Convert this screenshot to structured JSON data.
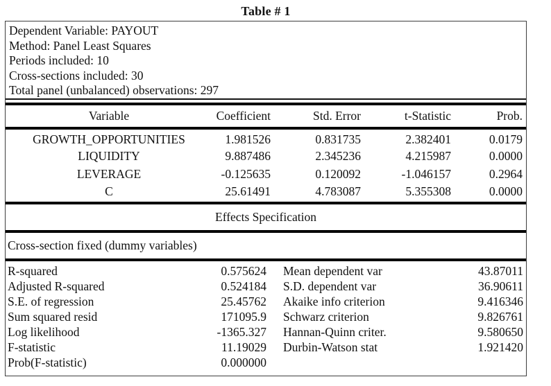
{
  "title": "Table # 1",
  "header_info": {
    "lines": [
      "Dependent Variable: PAYOUT",
      "Method: Panel Least Squares",
      "Periods included: 10",
      "Cross-sections included: 30",
      "Total panel (unbalanced) observations: 297"
    ]
  },
  "coefficients_table": {
    "columns": [
      "Variable",
      "Coefficient",
      "Std. Error",
      "t-Statistic",
      "Prob."
    ],
    "rows": [
      {
        "variable": "GROWTH_OPPORTUNITIES",
        "coefficient": "1.981526",
        "std_error": "0.831735",
        "t_statistic": "2.382401",
        "prob": "0.0179"
      },
      {
        "variable": "LIQUIDITY",
        "coefficient": "9.887486",
        "std_error": "2.345236",
        "t_statistic": "4.215987",
        "prob": "0.0000"
      },
      {
        "variable": "LEVERAGE",
        "coefficient": "-0.125635",
        "std_error": "0.120092",
        "t_statistic": "-1.046157",
        "prob": "0.2964"
      },
      {
        "variable": "C",
        "coefficient": "25.61491",
        "std_error": "4.783087",
        "t_statistic": "5.355308",
        "prob": "0.0000"
      }
    ]
  },
  "effects": {
    "section_title": "Effects Specification",
    "note": "Cross-section fixed (dummy variables)"
  },
  "summary_stats": {
    "left": [
      {
        "label": "R-squared",
        "value": "0.575624"
      },
      {
        "label": "Adjusted R-squared",
        "value": "0.524184"
      },
      {
        "label": "S.E. of regression",
        "value": "25.45762"
      },
      {
        "label": "Sum squared resid",
        "value": "171095.9"
      },
      {
        "label": "Log likelihood",
        "value": "-1365.327"
      },
      {
        "label": "F-statistic",
        "value": "11.19029"
      },
      {
        "label": "Prob(F-statistic)",
        "value": "0.000000"
      }
    ],
    "right": [
      {
        "label": "Mean dependent var",
        "value": "43.87011"
      },
      {
        "label": "S.D. dependent var",
        "value": "36.90611"
      },
      {
        "label": "Akaike info criterion",
        "value": "9.416346"
      },
      {
        "label": "Schwarz criterion",
        "value": "9.826761"
      },
      {
        "label": "Hannan-Quinn criter.",
        "value": "9.580650"
      },
      {
        "label": "Durbin-Watson stat",
        "value": "1.921420"
      }
    ]
  },
  "colors": {
    "text": "#111111",
    "rule": "#000000",
    "outer_border": "#3d3d3d",
    "background": "#ffffff"
  }
}
